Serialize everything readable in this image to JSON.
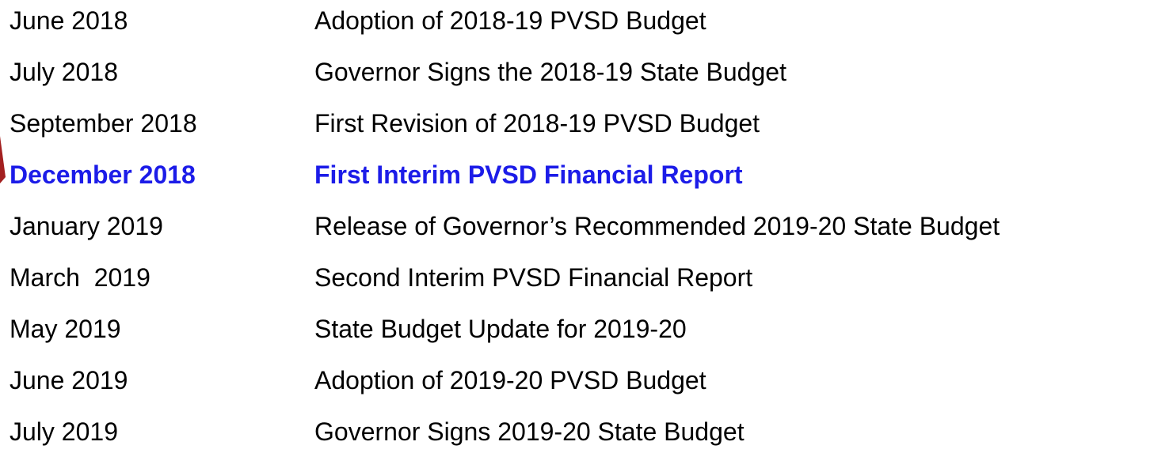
{
  "timeline": {
    "rows": [
      {
        "date": "June 2018",
        "event": "Adoption of 2018-19 PVSD Budget"
      },
      {
        "date": "July 2018",
        "event": "Governor Signs the 2018-19 State Budget"
      },
      {
        "date": "September 2018",
        "event": "First Revision of 2018-19 PVSD Budget"
      },
      {
        "date": "December 2018",
        "event": "First Interim PVSD Financial Report"
      },
      {
        "date": "January 2019",
        "event": "Release of Governor’s Recommended 2019-20 State Budget"
      },
      {
        "date": "March  2019",
        "event": "Second Interim PVSD Financial Report"
      },
      {
        "date": "May 2019",
        "event": "State Budget Update for 2019-20"
      },
      {
        "date": "June 2019",
        "event": "Adoption of 2019-20 PVSD Budget"
      },
      {
        "date": "July 2019",
        "event": "Governor Signs 2019-20 State Budget"
      }
    ],
    "highlight_row": 3,
    "highlight_color": "#1c1ce8",
    "text_color": "#000000"
  }
}
